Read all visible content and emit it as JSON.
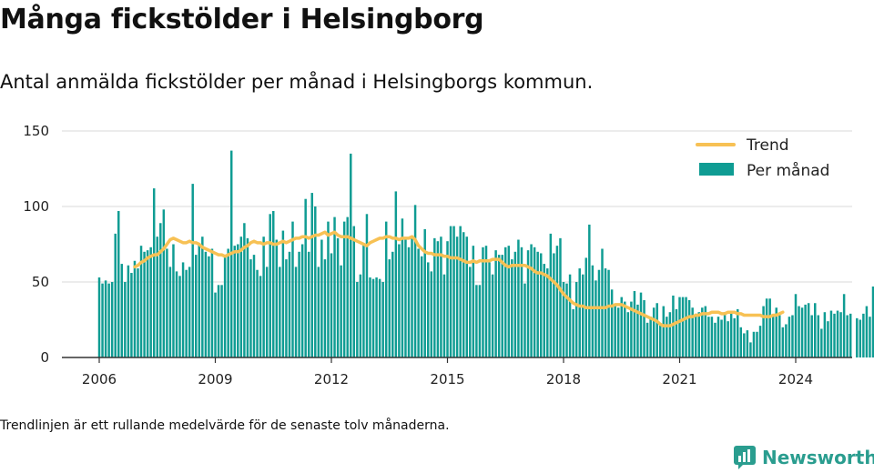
{
  "title": "Många fickstölder i Helsingborg",
  "subtitle": "Antal anmälda fickstölder per månad i Helsingborgs kommun.",
  "footnote": "Trendlinjen är ett rullande medelvärde för de senaste tolv månaderna.",
  "brand": {
    "name": "Newsworthy",
    "icon": "newsworthy-logo-icon",
    "color": "#2a9d8f"
  },
  "colors": {
    "bars": "#0f9c93",
    "trend": "#f7c154",
    "grid": "#d9d9d9",
    "axis": "#333333"
  },
  "chart_data": {
    "type": "bar",
    "title": "Många fickstölder i Helsingborg",
    "xlabel": "",
    "ylabel": "",
    "ylim": [
      0,
      150
    ],
    "yticks": [
      0,
      50,
      100,
      150
    ],
    "xticks": [
      "2006",
      "2009",
      "2012",
      "2015",
      "2018",
      "2021",
      "2024"
    ],
    "grid": true,
    "legend_position": "top-right",
    "start": "2006-01",
    "series": [
      {
        "name": "Per månad",
        "kind": "bar",
        "values": [
          53,
          49,
          51,
          49,
          50,
          82,
          97,
          62,
          50,
          61,
          56,
          64,
          59,
          74,
          70,
          71,
          73,
          112,
          80,
          89,
          98,
          72,
          60,
          75,
          57,
          54,
          63,
          58,
          60,
          115,
          68,
          75,
          80,
          70,
          67,
          72,
          43,
          48,
          48,
          67,
          72,
          137,
          74,
          75,
          80,
          89,
          79,
          65,
          68,
          58,
          54,
          80,
          60,
          95,
          97,
          78,
          60,
          84,
          65,
          70,
          90,
          60,
          70,
          75,
          105,
          70,
          109,
          100,
          60,
          78,
          65,
          90,
          69,
          93,
          79,
          61,
          90,
          93,
          135,
          87,
          50,
          55,
          75,
          95,
          53,
          52,
          53,
          52,
          50,
          90,
          65,
          70,
          110,
          75,
          92,
          78,
          73,
          79,
          101,
          72,
          67,
          85,
          63,
          57,
          79,
          77,
          80,
          55,
          77,
          87,
          87,
          80,
          87,
          83,
          80,
          60,
          74,
          48,
          48,
          73,
          74,
          63,
          55,
          71,
          68,
          68,
          73,
          74,
          65,
          70,
          78,
          73,
          49,
          71,
          75,
          73,
          70,
          69,
          62,
          59,
          82,
          69,
          74,
          79,
          50,
          49,
          55,
          32,
          50,
          59,
          55,
          66,
          88,
          61,
          51,
          58,
          72,
          59,
          58,
          45,
          34,
          33,
          40,
          37,
          30,
          37,
          44,
          35,
          43,
          38,
          23,
          27,
          33,
          36,
          22,
          34,
          27,
          30,
          41,
          32,
          40,
          40,
          40,
          38,
          33,
          29,
          30,
          33,
          34,
          27,
          27,
          23,
          27,
          25,
          30,
          24,
          29,
          26,
          32,
          20,
          16,
          18,
          10,
          17,
          17,
          21,
          34,
          39,
          39,
          27,
          33,
          28,
          20,
          22,
          27,
          28,
          42,
          34,
          33,
          35,
          36,
          28,
          36,
          28,
          19,
          30,
          24,
          31,
          29,
          31,
          30,
          42,
          28,
          29,
          0,
          26,
          25,
          29,
          34,
          27,
          47
        ]
      },
      {
        "name": "Trend",
        "kind": "line",
        "start_index": 11,
        "values": [
          60,
          61,
          63,
          64,
          66,
          67,
          68,
          68,
          70,
          72,
          75,
          78,
          79,
          78,
          77,
          76,
          76,
          77,
          76,
          76,
          75,
          73,
          72,
          71,
          70,
          69,
          68,
          68,
          67,
          68,
          69,
          70,
          70,
          71,
          73,
          74,
          76,
          77,
          76,
          76,
          75,
          76,
          76,
          75,
          75,
          76,
          77,
          76,
          77,
          78,
          79,
          79,
          80,
          80,
          79,
          80,
          81,
          81,
          82,
          83,
          81,
          82,
          83,
          81,
          80,
          80,
          80,
          79,
          78,
          77,
          76,
          75,
          74,
          76,
          77,
          78,
          79,
          79,
          80,
          80,
          79,
          79,
          78,
          79,
          79,
          79,
          80,
          78,
          74,
          72,
          70,
          69,
          69,
          68,
          68,
          68,
          67,
          67,
          66,
          66,
          66,
          65,
          64,
          63,
          63,
          64,
          63,
          64,
          64,
          64,
          64,
          65,
          65,
          65,
          63,
          61,
          60,
          61,
          61,
          61,
          61,
          61,
          60,
          59,
          57,
          56,
          56,
          55,
          54,
          52,
          50,
          48,
          45,
          42,
          40,
          38,
          36,
          35,
          34,
          34,
          33,
          33,
          33,
          33,
          33,
          33,
          33,
          34,
          34,
          35,
          35,
          35,
          34,
          33,
          32,
          31,
          30,
          29,
          28,
          27,
          26,
          25,
          24,
          22,
          21,
          21,
          21,
          22,
          23,
          24,
          25,
          26,
          27,
          27,
          28,
          28,
          29,
          29,
          29,
          30,
          30,
          30,
          29,
          29,
          30,
          30,
          30,
          29,
          29,
          28,
          28,
          28,
          28,
          28,
          28,
          27,
          27,
          27,
          28,
          28,
          29,
          30
        ]
      }
    ]
  }
}
